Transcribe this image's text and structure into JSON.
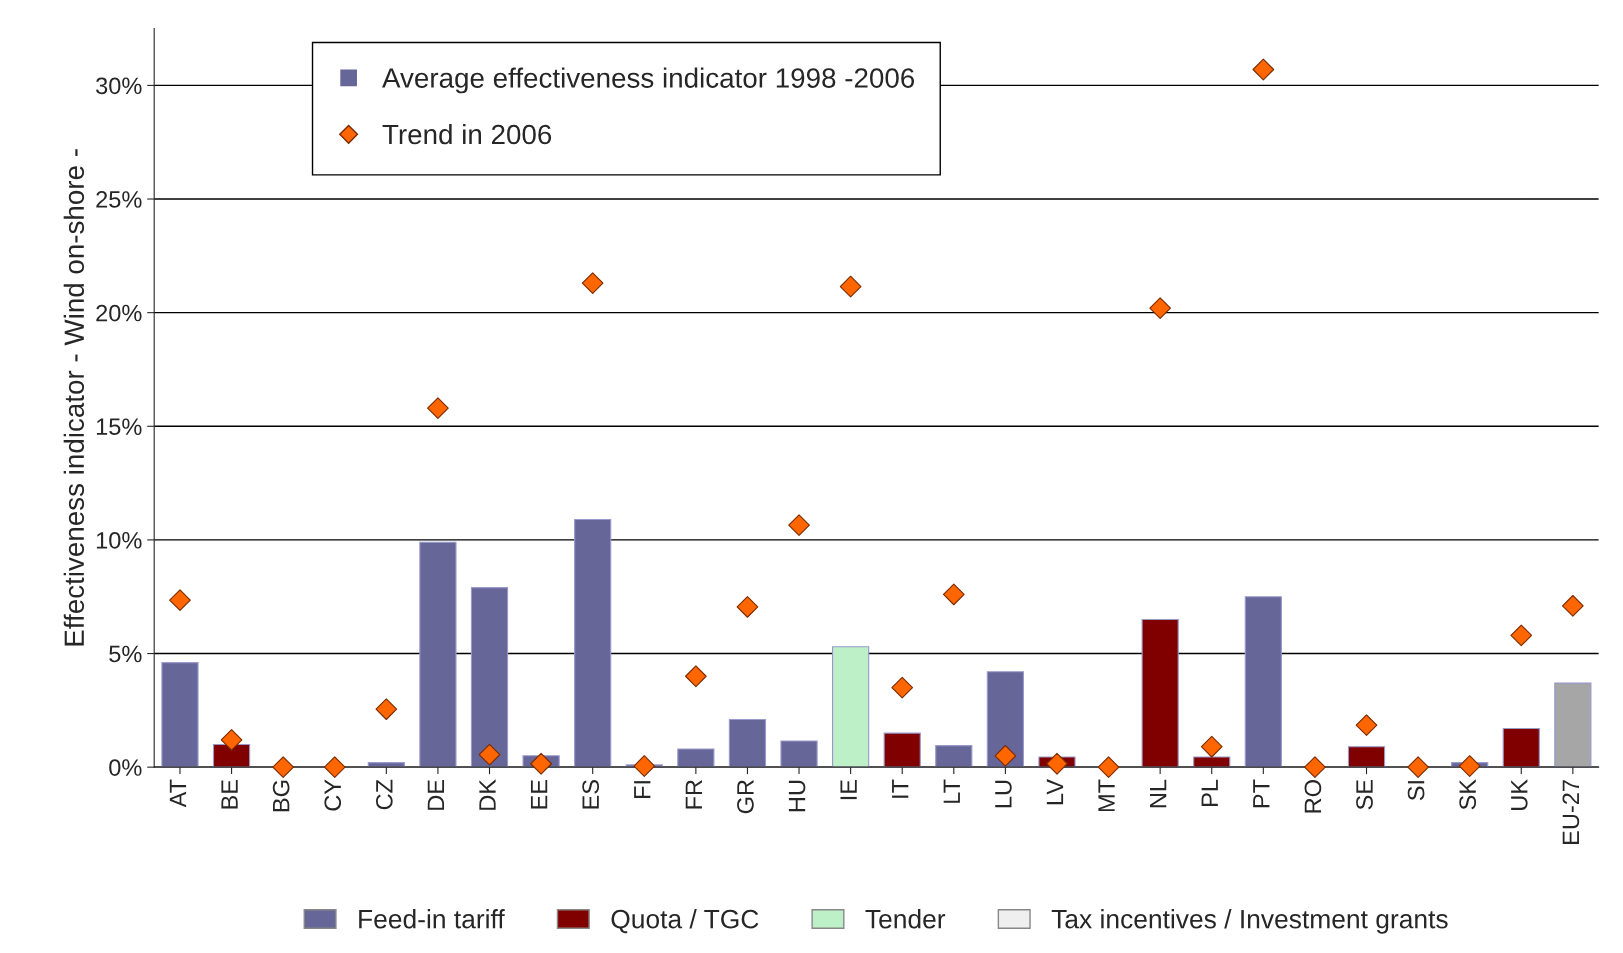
{
  "chart_data": {
    "type": "bar",
    "ylabel": "Effectiveness indicator - Wind on-shore -",
    "legend_title": "Average effectiveness indicator 1998 -2006",
    "categories": [
      "AT",
      "BE",
      "BG",
      "CY",
      "CZ",
      "DE",
      "DK",
      "EE",
      "ES",
      "FI",
      "FR",
      "GR",
      "HU",
      "IE",
      "IT",
      "LT",
      "LU",
      "LV",
      "MT",
      "NL",
      "PL",
      "PT",
      "RO",
      "SE",
      "SI",
      "SK",
      "UK",
      "EU-27"
    ],
    "series": [
      {
        "name": "Feed-in tariff",
        "color": "#666699",
        "values": [
          4.6,
          null,
          null,
          null,
          0.2,
          9.9,
          7.9,
          0.5,
          10.9,
          0.1,
          0.8,
          2.1,
          1.15,
          null,
          null,
          0.95,
          4.2,
          null,
          null,
          null,
          null,
          7.5,
          null,
          null,
          null,
          0.2,
          null,
          null
        ]
      },
      {
        "name": "Quota / TGC",
        "color": "#800000",
        "values": [
          null,
          1.0,
          null,
          null,
          null,
          null,
          null,
          null,
          null,
          null,
          null,
          null,
          null,
          null,
          1.5,
          null,
          null,
          0.45,
          null,
          6.5,
          0.45,
          null,
          null,
          0.9,
          null,
          null,
          1.7,
          null
        ]
      },
      {
        "name": "Tender",
        "color": "#bdf0c6",
        "values": [
          null,
          null,
          null,
          null,
          null,
          null,
          null,
          null,
          null,
          null,
          null,
          null,
          null,
          5.3,
          null,
          null,
          null,
          null,
          null,
          null,
          null,
          null,
          null,
          null,
          null,
          null,
          null,
          null
        ]
      },
      {
        "name": "Tax incentives / Investment grants",
        "color": "#efefef",
        "values": [
          null,
          null,
          null,
          null,
          null,
          null,
          null,
          null,
          null,
          null,
          null,
          null,
          null,
          null,
          null,
          null,
          null,
          null,
          null,
          null,
          null,
          null,
          null,
          null,
          null,
          null,
          null,
          null
        ]
      },
      {
        "color": "#a6a6a6",
        "values": [
          null,
          null,
          null,
          null,
          null,
          null,
          null,
          null,
          null,
          null,
          null,
          null,
          null,
          null,
          null,
          null,
          null,
          null,
          null,
          null,
          null,
          null,
          null,
          null,
          null,
          null,
          null,
          3.7
        ]
      },
      {
        "name": "Trend in 2006",
        "type": "scatter",
        "color": "#ff6600",
        "marker": "diamond",
        "values": [
          7.35,
          1.2,
          0,
          0,
          2.55,
          15.8,
          0.55,
          0.15,
          21.3,
          0.05,
          4.0,
          7.05,
          10.65,
          21.15,
          3.5,
          7.6,
          0.5,
          0.15,
          0,
          20.2,
          0.9,
          30.7,
          0,
          1.85,
          0,
          0.05,
          5.8,
          7.1
        ]
      }
    ],
    "ylim": [
      0,
      32.5
    ],
    "yticks": [
      {
        "value": 0,
        "label": "0%"
      },
      {
        "value": 5,
        "label": "5%"
      },
      {
        "value": 10,
        "label": "10%"
      },
      {
        "value": 15,
        "label": "15%"
      },
      {
        "value": 20,
        "label": "20%"
      },
      {
        "value": 25,
        "label": "25%"
      },
      {
        "value": 30,
        "label": "30%"
      }
    ],
    "grid": "y",
    "legend": "bottom"
  }
}
